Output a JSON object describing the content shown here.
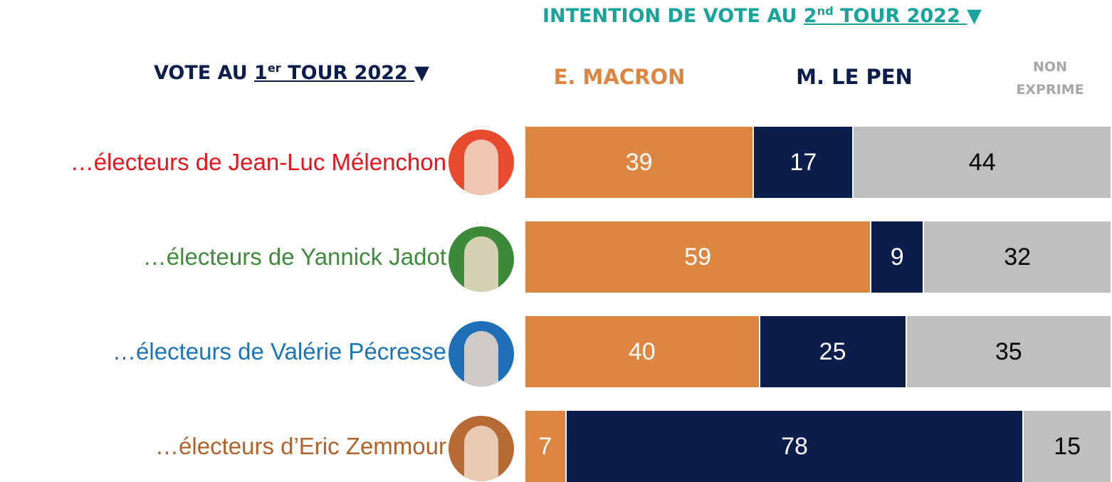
{
  "chart_data": {
    "type": "bar",
    "orientation": "horizontal",
    "stacked": true,
    "title": {
      "prefix": "INTENTION DE VOTE AU ",
      "ordinal": "2",
      "ordinal_suffix": "nd",
      "rest": " TOUR 2022 ",
      "marker": "▼",
      "color": "#1aa39a"
    },
    "row_header": {
      "prefix": "VOTE AU ",
      "ordinal": "1",
      "ordinal_suffix": "er",
      "rest": " TOUR 2022 ",
      "marker": "▼",
      "color": "#0b1d4a"
    },
    "categories": [
      "…électeurs de Jean-Luc Mélenchon",
      "…électeurs de Yannick Jadot",
      "…électeurs de Valérie Pécresse",
      "…électeurs d’Eric Zemmour"
    ],
    "category_colors": [
      "#e8141c",
      "#3f8a3c",
      "#1a74b8",
      "#b0622a"
    ],
    "xlim": [
      0,
      100
    ],
    "series": [
      {
        "name": "E. MACRON",
        "color": "#dc8642",
        "label_color": "#ffffff",
        "values": [
          39,
          59,
          40,
          7
        ]
      },
      {
        "name": "M. LE PEN",
        "color": "#0b1d4a",
        "label_color": "#ffffff",
        "values": [
          17,
          9,
          25,
          78
        ]
      },
      {
        "name": "NON EXPRIME",
        "color": "#bfbfbf",
        "label_color": "#000000",
        "values": [
          44,
          32,
          35,
          15
        ]
      }
    ]
  }
}
